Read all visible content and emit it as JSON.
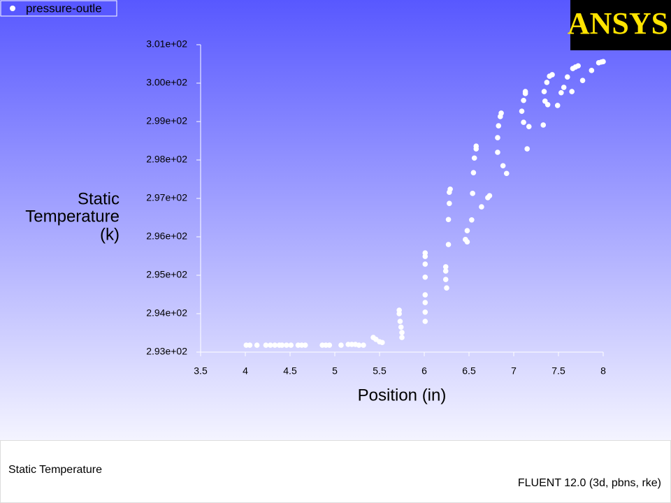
{
  "chart_data": {
    "type": "scatter",
    "y_label": [
      "Static",
      "Temperature",
      "(k)"
    ],
    "x_label": "Position (in)",
    "xlim": [
      3.5,
      8
    ],
    "xticks": [
      3.5,
      4,
      4.5,
      5,
      5.5,
      6,
      6.5,
      7,
      7.5,
      8
    ],
    "ylim": [
      293,
      301
    ],
    "yticks": [
      {
        "value": 293,
        "label": "2.93e+02"
      },
      {
        "value": 294,
        "label": "2.94e+02"
      },
      {
        "value": 295,
        "label": "2.95e+02"
      },
      {
        "value": 296,
        "label": "2.96e+02"
      },
      {
        "value": 297,
        "label": "2.97e+02"
      },
      {
        "value": 298,
        "label": "2.98e+02"
      },
      {
        "value": 299,
        "label": "2.99e+02"
      },
      {
        "value": 300,
        "label": "3.00e+02"
      },
      {
        "value": 301,
        "label": "3.01e+02"
      }
    ],
    "series": [
      {
        "name": "pressure-outle",
        "color": "#ffffff",
        "x": [
          4.01,
          4.05,
          4.13,
          4.23,
          4.28,
          4.33,
          4.38,
          4.41,
          4.46,
          4.51,
          4.59,
          4.63,
          4.67,
          4.86,
          4.9,
          4.94,
          5.07,
          5.15,
          5.19,
          5.23,
          5.27,
          5.32,
          5.43,
          5.46,
          5.5,
          5.53,
          5.72,
          5.72,
          5.73,
          5.74,
          5.75,
          5.75,
          6.01,
          6.01,
          6.01,
          6.01,
          6.01,
          6.01,
          6.01,
          6.01,
          6.24,
          6.24,
          6.24,
          6.25,
          6.27,
          6.27,
          6.28,
          6.28,
          6.29,
          6.46,
          6.48,
          6.48,
          6.53,
          6.54,
          6.55,
          6.56,
          6.58,
          6.58,
          6.64,
          6.71,
          6.73,
          6.82,
          6.82,
          6.83,
          6.85,
          6.86,
          6.88,
          6.92,
          7.09,
          7.11,
          7.13,
          7.13,
          7.11,
          7.15,
          7.17,
          7.33,
          7.34,
          7.35,
          7.37,
          7.38,
          7.4,
          7.43,
          7.49,
          7.53,
          7.56,
          7.6,
          7.65,
          7.66,
          7.69,
          7.72,
          7.77,
          7.87,
          7.95,
          7.98,
          8.0
        ],
        "values": [
          293.18,
          293.18,
          293.18,
          293.18,
          293.18,
          293.18,
          293.18,
          293.18,
          293.18,
          293.18,
          293.18,
          293.18,
          293.18,
          293.18,
          293.18,
          293.18,
          293.18,
          293.2,
          293.2,
          293.2,
          293.18,
          293.18,
          293.38,
          293.33,
          293.27,
          293.25,
          294.09,
          294.0,
          293.8,
          293.65,
          293.51,
          293.38,
          295.58,
          295.49,
          295.29,
          294.95,
          294.49,
          294.29,
          294.04,
          293.8,
          295.22,
          295.11,
          294.89,
          294.67,
          295.8,
          296.45,
          296.87,
          297.16,
          297.24,
          295.93,
          295.87,
          296.16,
          296.44,
          297.13,
          297.67,
          298.05,
          298.29,
          298.36,
          296.78,
          297.02,
          297.07,
          298.2,
          298.58,
          298.89,
          299.13,
          299.22,
          297.85,
          297.65,
          299.27,
          299.55,
          299.73,
          299.78,
          298.98,
          298.29,
          298.87,
          298.91,
          299.78,
          299.53,
          300.02,
          299.44,
          300.18,
          300.22,
          299.42,
          299.75,
          299.89,
          300.16,
          299.78,
          300.38,
          300.42,
          300.45,
          300.07,
          300.33,
          300.53,
          300.55,
          300.56
        ]
      }
    ]
  },
  "logo": "ANSYS",
  "footer": {
    "left": "Static Temperature",
    "right": "FLUENT 12.0 (3d, pbns, rke)"
  }
}
